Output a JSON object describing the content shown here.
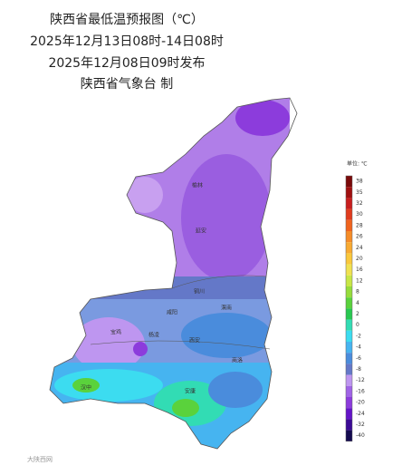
{
  "header": {
    "title": "陕西省最低温预报图（℃）",
    "period": "2025年12月13日08时-14日08时",
    "issued": "2025年12月08日09时发布",
    "issuer": "陕西省气象台 制"
  },
  "legend": {
    "title": "单位: ℃",
    "items": [
      {
        "value": 38,
        "color": "#7a0a0a"
      },
      {
        "value": 35,
        "color": "#a01010"
      },
      {
        "value": 32,
        "color": "#c81e1e"
      },
      {
        "value": 30,
        "color": "#e03c1e"
      },
      {
        "value": 28,
        "color": "#f0641e"
      },
      {
        "value": 26,
        "color": "#f58c28"
      },
      {
        "value": 24,
        "color": "#f8aa32"
      },
      {
        "value": 20,
        "color": "#fac83c"
      },
      {
        "value": 16,
        "color": "#f0e150"
      },
      {
        "value": 12,
        "color": "#c8e646"
      },
      {
        "value": 8,
        "color": "#96dc3c"
      },
      {
        "value": 4,
        "color": "#5ad23c"
      },
      {
        "value": 2,
        "color": "#28c850"
      },
      {
        "value": 0,
        "color": "#32dcb4"
      },
      {
        "value": -2,
        "color": "#3cdcf0"
      },
      {
        "value": -4,
        "color": "#46b4f0"
      },
      {
        "value": -6,
        "color": "#4a8cdc"
      },
      {
        "value": -8,
        "color": "#6478c8"
      },
      {
        "value": -12,
        "color": "#be96f0"
      },
      {
        "value": -16,
        "color": "#a064e6"
      },
      {
        "value": -20,
        "color": "#8c3cdc"
      },
      {
        "value": -24,
        "color": "#6414c8"
      },
      {
        "value": -32,
        "color": "#3c0a96"
      },
      {
        "value": -40,
        "color": "#140a50"
      }
    ]
  },
  "cities": [
    "榆林",
    "延安",
    "铜川",
    "渭南",
    "咸阳",
    "宝鸡",
    "杨凌",
    "西安",
    "商洛",
    "汉中",
    "安康"
  ],
  "watermark": "大陕西网"
}
